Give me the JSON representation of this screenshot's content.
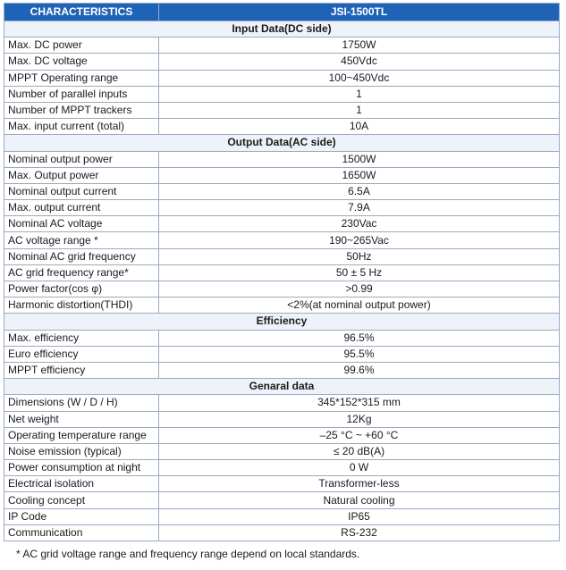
{
  "header": {
    "characteristics": "CHARACTERISTICS",
    "model": "JSI-1500TL"
  },
  "rows": [
    {
      "type": "section",
      "label": "Input Data(DC side)"
    },
    {
      "label": "Max. DC power",
      "value": "1750W"
    },
    {
      "label": "Max. DC voltage",
      "value": "450Vdc"
    },
    {
      "label": "MPPT Operating range",
      "value": "100~450Vdc"
    },
    {
      "label": "Number of parallel inputs",
      "value": "1"
    },
    {
      "label": "Number of MPPT trackers",
      "value": "1"
    },
    {
      "label": "Max. input current (total)",
      "value": "10A"
    },
    {
      "type": "section",
      "label": "Output Data(AC side)"
    },
    {
      "label": "Nominal output power",
      "value": "1500W"
    },
    {
      "label": "Max. Output power",
      "value": "1650W"
    },
    {
      "label": "Nominal output current",
      "value": "6.5A"
    },
    {
      "label": "Max. output current",
      "value": "7.9A"
    },
    {
      "label": "Nominal AC voltage",
      "value": "230Vac"
    },
    {
      "label": "AC voltage range *",
      "value": "190~265Vac"
    },
    {
      "label": "Nominal AC grid frequency",
      "value": "50Hz"
    },
    {
      "label": "AC grid frequency range*",
      "value": "50 ± 5 Hz"
    },
    {
      "label": "Power factor(cos φ)",
      "value": ">0.99"
    },
    {
      "label": "Harmonic distortion(THDI)",
      "value": "<2%(at nominal output power)"
    },
    {
      "type": "section",
      "label": "Efficiency"
    },
    {
      "label": "Max. efficiency",
      "value": "96.5%"
    },
    {
      "label": "Euro efficiency",
      "value": "95.5%"
    },
    {
      "label": "MPPT efficiency",
      "value": "99.6%"
    },
    {
      "type": "section",
      "label": "Genaral data"
    },
    {
      "label": "Dimensions (W / D / H)",
      "value": "345*152*315 mm"
    },
    {
      "label": "Net weight",
      "value": "12Kg"
    },
    {
      "label": "Operating temperature range",
      "value": "–25 °C ~ +60 °C"
    },
    {
      "label": "Noise emission (typical)",
      "value": "≤ 20 dB(A)"
    },
    {
      "label": "Power consumption at night",
      "value": "0 W"
    },
    {
      "label": "Electrical isolation",
      "value": "Transformer-less"
    },
    {
      "label": "Cooling concept",
      "value": "Natural cooling"
    },
    {
      "label": "IP Code",
      "value": "IP65"
    },
    {
      "label": "Communication",
      "value": "RS-232"
    }
  ],
  "footnote": "* AC grid voltage range and frequency range depend on local standards."
}
